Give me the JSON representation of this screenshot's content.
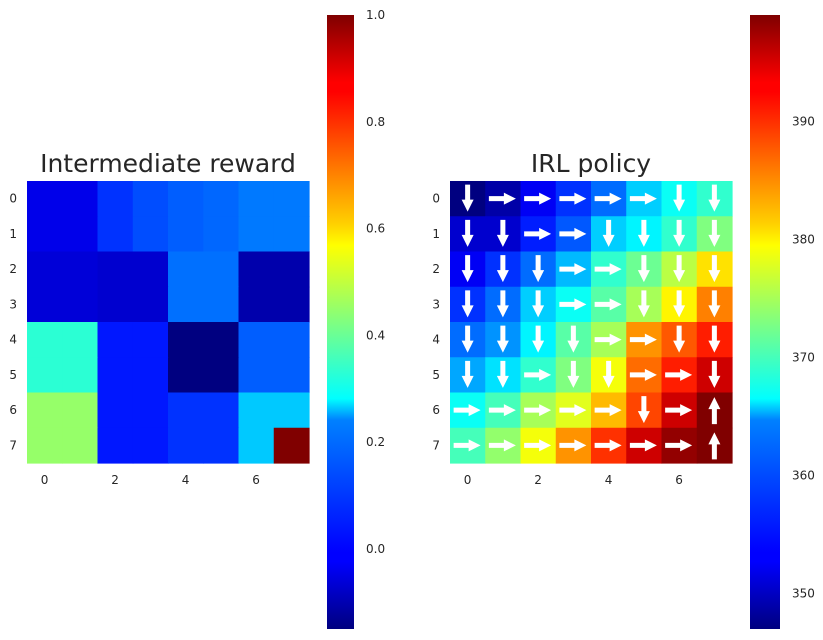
{
  "chart_data": [
    {
      "type": "heatmap",
      "title": "Intermediate reward",
      "colormap": "jet",
      "rows": 8,
      "cols": 8,
      "x_ticks": [
        "0",
        "2",
        "4",
        "6"
      ],
      "y_ticks": [
        "0",
        "1",
        "2",
        "3",
        "4",
        "5",
        "6",
        "7"
      ],
      "values": [
        [
          -0.03,
          -0.03,
          0.05,
          0.08,
          0.1,
          0.11,
          0.13,
          0.13
        ],
        [
          -0.03,
          -0.03,
          0.05,
          0.08,
          0.1,
          0.11,
          0.13,
          0.13
        ],
        [
          -0.05,
          -0.05,
          -0.06,
          -0.06,
          0.12,
          0.12,
          -0.1,
          -0.1
        ],
        [
          -0.05,
          -0.05,
          -0.06,
          -0.06,
          0.12,
          0.12,
          -0.1,
          -0.1
        ],
        [
          0.33,
          0.33,
          0.02,
          0.02,
          -0.15,
          -0.15,
          0.1,
          0.1
        ],
        [
          0.33,
          0.33,
          0.02,
          0.02,
          -0.15,
          -0.15,
          0.1,
          0.1
        ],
        [
          0.45,
          0.45,
          0.02,
          0.02,
          0.05,
          0.05,
          0.22,
          0.22
        ],
        [
          0.45,
          0.45,
          0.02,
          0.02,
          0.05,
          0.05,
          0.22,
          1.0
        ]
      ],
      "colorbar": {
        "min": -0.15,
        "max": 1.0,
        "ticks": [
          "0.0",
          "0.2",
          "0.4",
          "0.6",
          "0.8",
          "1.0"
        ],
        "tick_values": [
          0.0,
          0.2,
          0.4,
          0.6,
          0.8,
          1.0
        ]
      }
    },
    {
      "type": "heatmap",
      "title": "IRL policy",
      "colormap": "jet",
      "rows": 8,
      "cols": 8,
      "x_ticks": [
        "0",
        "2",
        "4",
        "6"
      ],
      "y_ticks": [
        "0",
        "1",
        "2",
        "3",
        "4",
        "5",
        "6",
        "7"
      ],
      "values": [
        [
          347,
          349,
          353,
          356,
          359,
          364,
          367,
          369
        ],
        [
          351,
          351,
          355,
          358,
          364,
          366,
          369,
          373
        ],
        [
          353,
          356,
          359,
          363,
          369,
          372,
          376,
          381
        ],
        [
          356,
          359,
          364,
          367,
          371,
          375,
          380,
          386
        ],
        [
          359,
          361,
          366,
          371,
          375,
          385,
          388,
          391
        ],
        [
          362,
          365,
          369,
          373,
          379,
          387,
          391,
          395
        ],
        [
          367,
          370,
          375,
          378,
          383,
          389,
          395,
          399
        ],
        [
          370,
          374,
          379,
          385,
          390,
          395,
          398,
          399
        ]
      ],
      "policy": [
        [
          "down",
          "right",
          "right",
          "right",
          "right",
          "right",
          "down",
          "down"
        ],
        [
          "down",
          "down",
          "right",
          "right",
          "down",
          "down",
          "down",
          "down"
        ],
        [
          "down",
          "down",
          "down",
          "right",
          "right",
          "down",
          "down",
          "down"
        ],
        [
          "down",
          "down",
          "down",
          "right",
          "right",
          "down",
          "down",
          "down"
        ],
        [
          "down",
          "down",
          "down",
          "down",
          "right",
          "right",
          "down",
          "down"
        ],
        [
          "down",
          "down",
          "right",
          "down",
          "down",
          "right",
          "right",
          "down"
        ],
        [
          "right",
          "right",
          "right",
          "right",
          "right",
          "down",
          "right",
          "up"
        ],
        [
          "right",
          "right",
          "right",
          "right",
          "right",
          "right",
          "right",
          "up"
        ]
      ],
      "colorbar": {
        "min": 347,
        "max": 399,
        "ticks": [
          "350",
          "360",
          "370",
          "380",
          "390"
        ],
        "tick_values": [
          350,
          360,
          370,
          380,
          390
        ]
      }
    }
  ]
}
